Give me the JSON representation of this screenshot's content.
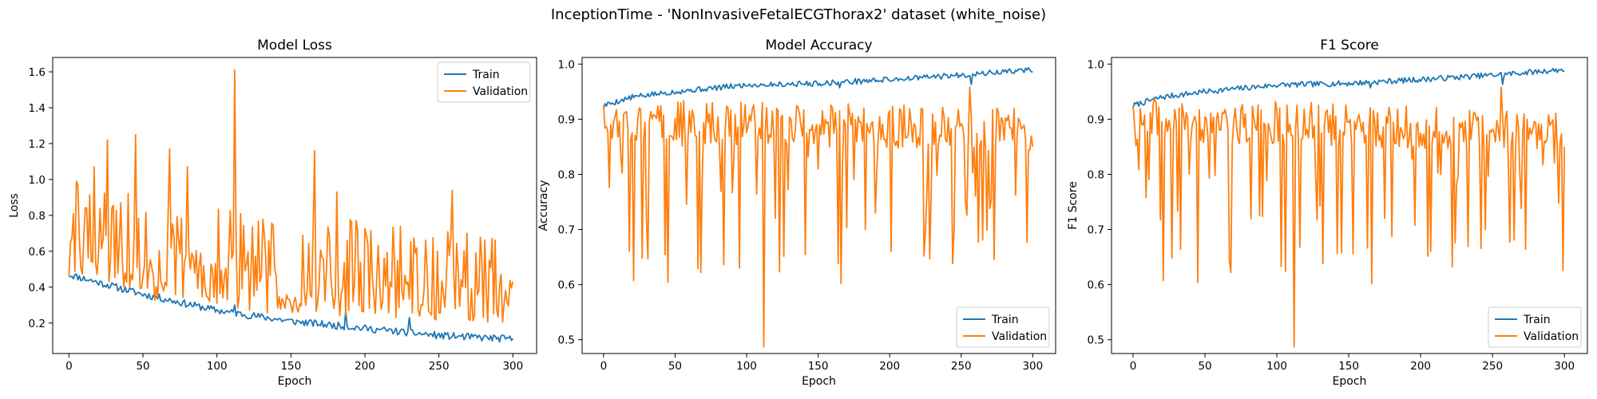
{
  "figure": {
    "suptitle": "InceptionTime - 'NonInvasiveFetalECGThorax2' dataset (white_noise)"
  },
  "colors": {
    "train": "#1f77b4",
    "validation": "#ff7f0e",
    "axes": "#000000",
    "legend_border": "#cccccc"
  },
  "chart_data": [
    {
      "type": "line",
      "title": "Model Loss",
      "xlabel": "Epoch",
      "ylabel": "Loss",
      "xlim": [
        -11,
        316
      ],
      "ylim": [
        0.03,
        1.68
      ],
      "xticks": [
        0,
        50,
        100,
        150,
        200,
        250,
        300
      ],
      "yticks": [
        0.2,
        0.4,
        0.6,
        0.8,
        1.0,
        1.2,
        1.4,
        1.6
      ],
      "ytick_decimals": 1,
      "legend_position": "upper right",
      "grid": false,
      "series": [
        {
          "name": "Train",
          "generator": {
            "kind": "train",
            "base": [
              [
                0,
                0.47
              ],
              [
                50,
                0.36
              ],
              [
                100,
                0.27
              ],
              [
                150,
                0.21
              ],
              [
                200,
                0.17
              ],
              [
                250,
                0.13
              ],
              [
                300,
                0.11
              ]
            ],
            "noise": 0.02,
            "seed": 11
          },
          "spikes": [
            [
              112,
              0.3
            ],
            [
              187,
              0.27
            ],
            [
              230,
              0.23
            ]
          ]
        },
        {
          "name": "Validation",
          "generator": {
            "kind": "loss_val",
            "base": [
              [
                0,
                0.47
              ],
              [
                5,
                0.6
              ],
              [
                50,
                0.47
              ],
              [
                100,
                0.42
              ],
              [
                150,
                0.38
              ],
              [
                200,
                0.37
              ],
              [
                250,
                0.34
              ],
              [
                300,
                0.32
              ]
            ],
            "noise": 0.18,
            "min": 0.2,
            "max": 1.3,
            "seed": 29
          },
          "spikes": [
            [
              0,
              0.46
            ],
            [
              3,
              0.81
            ],
            [
              12,
              0.84
            ],
            [
              17,
              1.07
            ],
            [
              26,
              1.22
            ],
            [
              35,
              0.87
            ],
            [
              45,
              1.25
            ],
            [
              68,
              1.17
            ],
            [
              80,
              1.07
            ],
            [
              112,
              1.61
            ],
            [
              166,
              1.16
            ],
            [
              181,
              0.93
            ],
            [
              259,
              0.94
            ],
            [
              269,
              0.7
            ],
            [
              294,
              0.3
            ],
            [
              300,
              0.43
            ]
          ]
        }
      ]
    },
    {
      "type": "line",
      "title": "Model Accuracy",
      "xlabel": "Epoch",
      "ylabel": "Accuracy",
      "xlim": [
        -15,
        316
      ],
      "ylim": [
        0.475,
        1.012
      ],
      "xticks": [
        0,
        50,
        100,
        150,
        200,
        250,
        300
      ],
      "yticks": [
        0.5,
        0.6,
        0.7,
        0.8,
        0.9,
        1.0
      ],
      "ytick_decimals": 1,
      "legend_position": "lower right",
      "grid": false,
      "series": [
        {
          "name": "Train",
          "generator": {
            "kind": "train",
            "base": [
              [
                0,
                0.925
              ],
              [
                20,
                0.94
              ],
              [
                50,
                0.95
              ],
              [
                100,
                0.962
              ],
              [
                150,
                0.965
              ],
              [
                200,
                0.972
              ],
              [
                250,
                0.98
              ],
              [
                300,
                0.99
              ]
            ],
            "noise": 0.005,
            "seed": 5
          },
          "spikes": [
            [
              0,
              0.92
            ],
            [
              165,
              0.957
            ],
            [
              257,
              0.963
            ]
          ]
        },
        {
          "name": "Validation",
          "generator": {
            "kind": "acc_val",
            "base": [
              [
                0,
                0.9
              ],
              [
                300,
                0.88
              ]
            ],
            "noise": 0.04,
            "dip_prob": 0.22,
            "dip_min": 0.62,
            "max": 0.955,
            "seed": 17
          },
          "spikes": [
            [
              0,
              0.925
            ],
            [
              21,
              0.607
            ],
            [
              27,
              0.648
            ],
            [
              45,
              0.604
            ],
            [
              68,
              0.622
            ],
            [
              112,
              0.487
            ],
            [
              166,
              0.602
            ],
            [
              245,
              0.7
            ],
            [
              262,
              0.677
            ],
            [
              265,
              0.681
            ],
            [
              270,
              0.738
            ],
            [
              256,
              0.958
            ],
            [
              300,
              0.85
            ]
          ]
        }
      ]
    },
    {
      "type": "line",
      "title": "F1 Score",
      "xlabel": "Epoch",
      "ylabel": "F1 Score",
      "xlim": [
        -15,
        316
      ],
      "ylim": [
        0.475,
        1.012
      ],
      "xticks": [
        0,
        50,
        100,
        150,
        200,
        250,
        300
      ],
      "yticks": [
        0.5,
        0.6,
        0.7,
        0.8,
        0.9,
        1.0
      ],
      "ytick_decimals": 1,
      "legend_position": "lower right",
      "grid": false,
      "series": [
        {
          "name": "Train",
          "generator": {
            "kind": "train",
            "base": [
              [
                0,
                0.925
              ],
              [
                20,
                0.94
              ],
              [
                50,
                0.95
              ],
              [
                100,
                0.962
              ],
              [
                150,
                0.965
              ],
              [
                200,
                0.972
              ],
              [
                250,
                0.98
              ],
              [
                300,
                0.99
              ]
            ],
            "noise": 0.005,
            "seed": 7
          },
          "spikes": [
            [
              0,
              0.92
            ],
            [
              165,
              0.957
            ],
            [
              257,
              0.963
            ]
          ]
        },
        {
          "name": "Validation",
          "generator": {
            "kind": "acc_val",
            "base": [
              [
                0,
                0.9
              ],
              [
                300,
                0.88
              ]
            ],
            "noise": 0.04,
            "dip_prob": 0.22,
            "dip_min": 0.62,
            "max": 0.955,
            "seed": 19
          },
          "spikes": [
            [
              0,
              0.925
            ],
            [
              21,
              0.607
            ],
            [
              27,
              0.648
            ],
            [
              45,
              0.604
            ],
            [
              68,
              0.622
            ],
            [
              112,
              0.487
            ],
            [
              166,
              0.602
            ],
            [
              245,
              0.7
            ],
            [
              262,
              0.677
            ],
            [
              265,
              0.681
            ],
            [
              270,
              0.738
            ],
            [
              256,
              0.958
            ],
            [
              300,
              0.85
            ]
          ]
        }
      ]
    }
  ]
}
